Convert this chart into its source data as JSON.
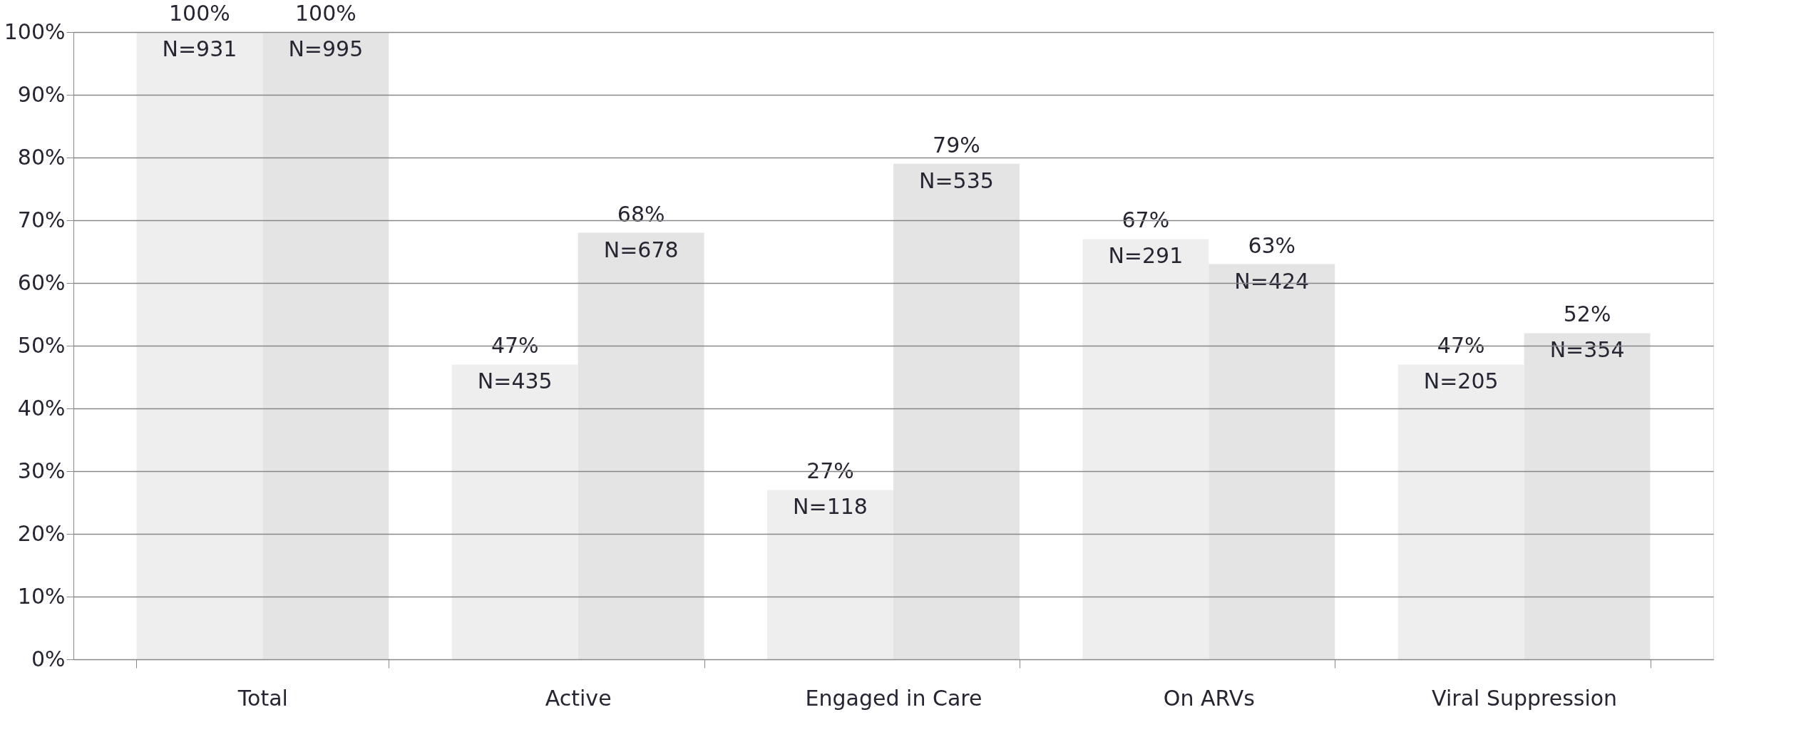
{
  "chart_data": {
    "type": "bar",
    "categories": [
      "Total",
      "Active",
      "Engaged in Care",
      "On ARVs",
      "Viral Suppression"
    ],
    "series": [
      {
        "color": "#eeeeee",
        "values": [
          100,
          47,
          27,
          67,
          47
        ],
        "value_labels": [
          "100%\nN=931",
          "47%\nN=435",
          "27%\nN=118",
          "67%\nN=291",
          "47%\nN=205"
        ]
      },
      {
        "color": "#e4e4e4",
        "values": [
          100,
          68,
          79,
          63,
          52
        ],
        "value_labels": [
          "100%\nN=995",
          "68%\nN=678",
          "79%\nN=535",
          "63%\nN=424",
          "52%\nN=354"
        ]
      }
    ],
    "ylim": [
      0,
      100
    ],
    "yticks": [
      {
        "value": 0,
        "label": "0%"
      },
      {
        "value": 10,
        "label": "10%"
      },
      {
        "value": 20,
        "label": "20%"
      },
      {
        "value": 30,
        "label": "30%"
      },
      {
        "value": 40,
        "label": "40%"
      },
      {
        "value": 50,
        "label": "50%"
      },
      {
        "value": 60,
        "label": "60%"
      },
      {
        "value": 70,
        "label": "70%"
      },
      {
        "value": 80,
        "label": "80%"
      },
      {
        "value": 90,
        "label": "90%"
      },
      {
        "value": 100,
        "label": "100%"
      }
    ],
    "grid": "y",
    "legend": false
  }
}
